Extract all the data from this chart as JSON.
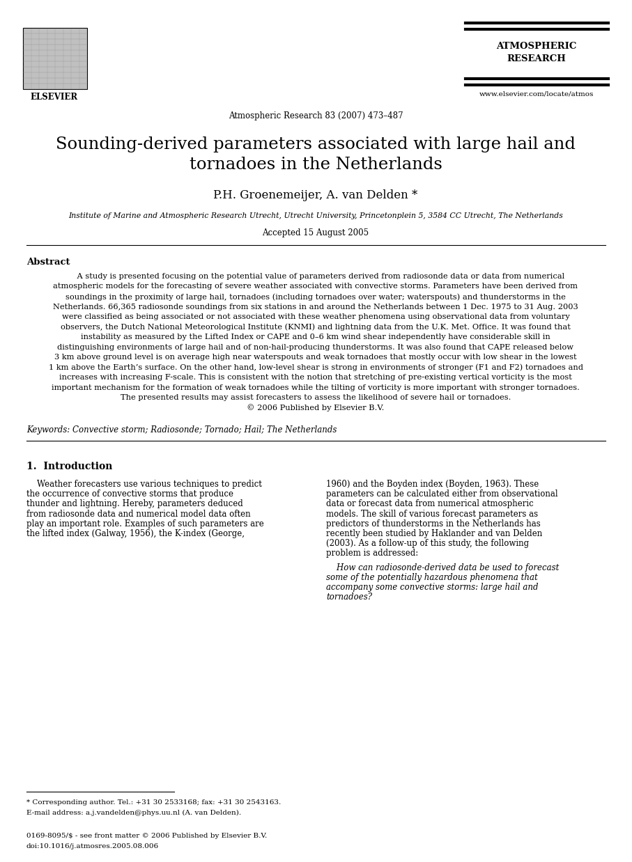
{
  "bg_color": "#ffffff",
  "journal_center": "Atmospheric Research 83 (2007) 473–487",
  "journal_tr1": "ATMOSPHERIC",
  "journal_tr2": "RESEARCH",
  "journal_url": "www.elsevier.com/locate/atmos",
  "title1": "Sounding-derived parameters associated with large hail and",
  "title2": "tornadoes in the Netherlands",
  "authors": "P.H. Groenemeijer, A. van Delden *",
  "affiliation": "Institute of Marine and Atmospheric Research Utrecht, Utrecht University, Princetonplein 5, 3584 CC Utrecht, The Netherlands",
  "accepted": "Accepted 15 August 2005",
  "abstract_label": "Abstract",
  "abstract_lines": [
    "    A study is presented focusing on the potential value of parameters derived from radiosonde data or data from numerical",
    "atmospheric models for the forecasting of severe weather associated with convective storms. Parameters have been derived from",
    "soundings in the proximity of large hail, tornadoes (including tornadoes over water; waterspouts) and thunderstorms in the",
    "Netherlands. 66,365 radiosonde soundings from six stations in and around the Netherlands between 1 Dec. 1975 to 31 Aug. 2003",
    "were classified as being associated or not associated with these weather phenomena using observational data from voluntary",
    "observers, the Dutch National Meteorological Institute (KNMI) and lightning data from the U.K. Met. Office. It was found that",
    "instability as measured by the Lifted Index or CAPE and 0–6 km wind shear independently have considerable skill in",
    "distinguishing environments of large hail and of non-hail-producing thunderstorms. It was also found that CAPE released below",
    "3 km above ground level is on average high near waterspouts and weak tornadoes that mostly occur with low shear in the lowest",
    "1 km above the Earth’s surface. On the other hand, low-level shear is strong in environments of stronger (F1 and F2) tornadoes and",
    "increases with increasing F-scale. This is consistent with the notion that stretching of pre-existing vertical vorticity is the most",
    "important mechanism for the formation of weak tornadoes while the tilting of vorticity is more important with stronger tornadoes.",
    "The presented results may assist forecasters to assess the likelihood of severe hail or tornadoes.",
    "© 2006 Published by Elsevier B.V."
  ],
  "keywords": "Keywords: Convective storm; Radiosonde; Tornado; Hail; The Netherlands",
  "sec1_title": "1.  Introduction",
  "sec1_c1_lines": [
    "    Weather forecasters use various techniques to predict",
    "the occurrence of convective storms that produce",
    "thunder and lightning. Hereby, parameters deduced",
    "from radiosonde data and numerical model data often",
    "play an important role. Examples of such parameters are",
    "the lifted index (Galway, 1956), the K-index (George,"
  ],
  "sec1_c2a_lines": [
    "1960) and the Boyden index (Boyden, 1963). These",
    "parameters can be calculated either from observational",
    "data or forecast data from numerical atmospheric",
    "models. The skill of various forecast parameters as",
    "predictors of thunderstorms in the Netherlands has",
    "recently been studied by Haklander and van Delden",
    "(2003). As a follow-up of this study, the following",
    "problem is addressed:"
  ],
  "sec1_c2b_lines": [
    "    How can radiosonde-derived data be used to forecast",
    "some of the potentially hazardous phenomena that",
    "accompany some convective storms: large hail and",
    "tornadoes?"
  ],
  "fn1": "* Corresponding author. Tel.: +31 30 2533168; fax: +31 30 2543163.",
  "fn2": "E-mail address: a.j.vandelden@phys.uu.nl (A. van Delden).",
  "fn3": "0169-8095/$ - see front matter © 2006 Published by Elsevier B.V.",
  "fn4": "doi:10.1016/j.atmosres.2005.08.006"
}
